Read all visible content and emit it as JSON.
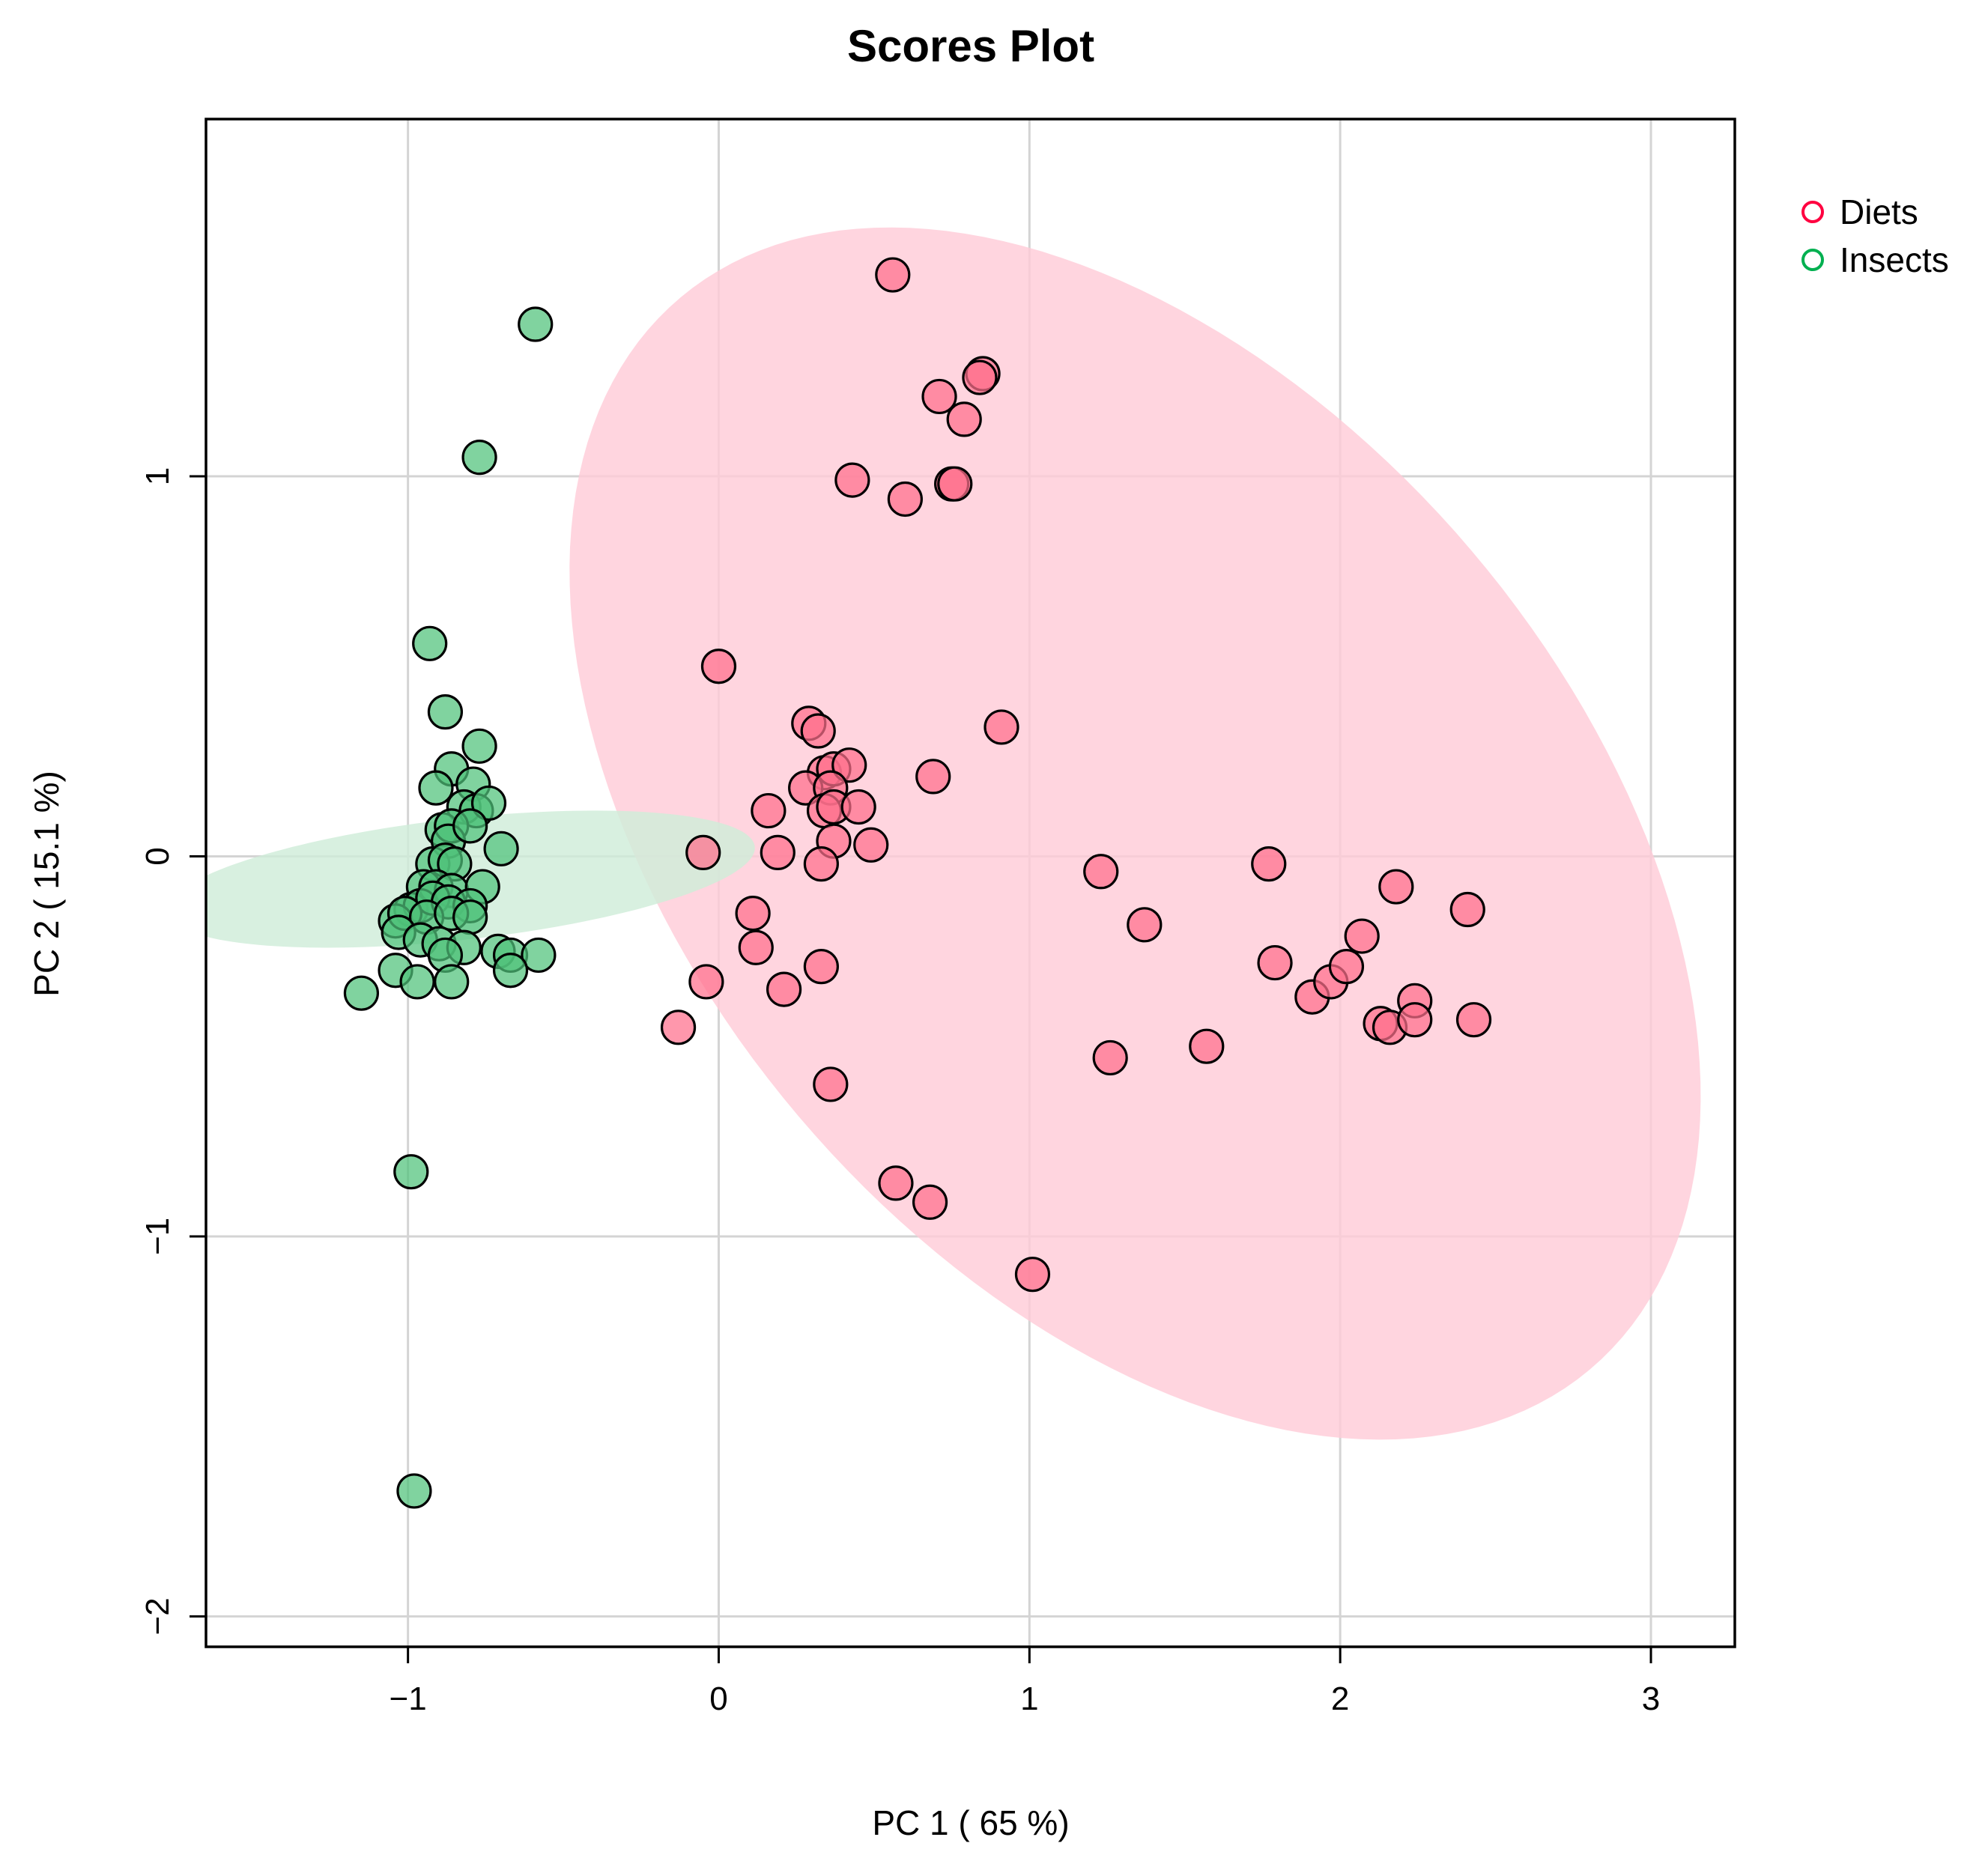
{
  "chart_data": {
    "type": "scatter",
    "title": "Scores Plot",
    "xlabel": "PC 1 ( 65 %)",
    "ylabel": "PC 2 ( 15.1 %)",
    "xlim": [
      -1.65,
      3.27
    ],
    "ylim": [
      -2.08,
      1.94
    ],
    "xticks": [
      -1,
      0,
      1,
      2,
      3
    ],
    "yticks": [
      -2,
      -1,
      0,
      1
    ],
    "xtick_labels": [
      "−1",
      "0",
      "1",
      "2",
      "3"
    ],
    "ytick_labels": [
      "−2",
      "−1",
      "0",
      "1"
    ],
    "grid": true,
    "legend_position": "outside-top-right",
    "series": [
      {
        "name": "Diets",
        "legend_color": "#ff0040",
        "fill_color": "#ff6f8c",
        "ellipse_color": "#ffccd8",
        "ellipse": {
          "cx": 1.34,
          "cy": 0.06,
          "rx": 2.06,
          "ry": 1.27,
          "angle_deg": -36.5
        },
        "points": [
          [
            0.56,
            1.53
          ],
          [
            0.85,
            1.27
          ],
          [
            0.84,
            1.26
          ],
          [
            0.71,
            1.21
          ],
          [
            0.79,
            1.15
          ],
          [
            0.43,
            0.99
          ],
          [
            0.6,
            0.94
          ],
          [
            0.75,
            0.98
          ],
          [
            0.76,
            0.98
          ],
          [
            0.0,
            0.5
          ],
          [
            0.91,
            0.34
          ],
          [
            0.29,
            0.35
          ],
          [
            0.32,
            0.33
          ],
          [
            0.34,
            0.22
          ],
          [
            0.37,
            0.23
          ],
          [
            0.42,
            0.24
          ],
          [
            0.28,
            0.18
          ],
          [
            0.36,
            0.18
          ],
          [
            0.16,
            0.12
          ],
          [
            0.34,
            0.12
          ],
          [
            0.37,
            0.13
          ],
          [
            0.45,
            0.13
          ],
          [
            0.69,
            0.21
          ],
          [
            -0.05,
            0.01
          ],
          [
            0.19,
            0.01
          ],
          [
            0.37,
            0.04
          ],
          [
            0.49,
            0.03
          ],
          [
            0.33,
            -0.02
          ],
          [
            0.11,
            -0.15
          ],
          [
            0.12,
            -0.24
          ],
          [
            0.33,
            -0.29
          ],
          [
            -0.04,
            -0.33
          ],
          [
            0.21,
            -0.35
          ],
          [
            -0.13,
            -0.45
          ],
          [
            0.36,
            -0.6
          ],
          [
            0.57,
            -0.86
          ],
          [
            0.68,
            -0.91
          ],
          [
            1.01,
            -1.1
          ],
          [
            1.23,
            -0.04
          ],
          [
            1.37,
            -0.18
          ],
          [
            1.26,
            -0.53
          ],
          [
            1.57,
            -0.5
          ],
          [
            1.77,
            -0.02
          ],
          [
            1.79,
            -0.28
          ],
          [
            1.91,
            -0.37
          ],
          [
            1.97,
            -0.33
          ],
          [
            2.02,
            -0.29
          ],
          [
            2.07,
            -0.21
          ],
          [
            2.18,
            -0.08
          ],
          [
            2.41,
            -0.14
          ],
          [
            2.13,
            -0.44
          ],
          [
            2.16,
            -0.45
          ],
          [
            2.24,
            -0.38
          ],
          [
            2.24,
            -0.43
          ],
          [
            2.43,
            -0.43
          ]
        ]
      },
      {
        "name": "Insects",
        "legend_color": "#00b050",
        "fill_color": "#4fc27a",
        "ellipse_color": "#cfedd9",
        "ellipse": {
          "cx": -0.83,
          "cy": -0.06,
          "rx": 0.16,
          "ry": 0.95,
          "angle_deg": 95.1
        },
        "points": [
          [
            -0.59,
            1.4
          ],
          [
            -0.77,
            1.05
          ],
          [
            -0.93,
            0.56
          ],
          [
            -0.88,
            0.38
          ],
          [
            -0.77,
            0.29
          ],
          [
            -0.86,
            0.23
          ],
          [
            -0.91,
            0.18
          ],
          [
            -0.79,
            0.19
          ],
          [
            -0.82,
            0.13
          ],
          [
            -0.78,
            0.12
          ],
          [
            -0.74,
            0.14
          ],
          [
            -0.89,
            0.07
          ],
          [
            -0.86,
            0.08
          ],
          [
            -0.87,
            0.04
          ],
          [
            -0.8,
            0.08
          ],
          [
            -0.7,
            0.02
          ],
          [
            -0.92,
            -0.02
          ],
          [
            -0.88,
            -0.01
          ],
          [
            -0.85,
            -0.02
          ],
          [
            -0.95,
            -0.08
          ],
          [
            -0.91,
            -0.08
          ],
          [
            -0.86,
            -0.09
          ],
          [
            -0.76,
            -0.08
          ],
          [
            -0.99,
            -0.14
          ],
          [
            -0.96,
            -0.13
          ],
          [
            -0.92,
            -0.11
          ],
          [
            -0.87,
            -0.12
          ],
          [
            -0.8,
            -0.13
          ],
          [
            -1.04,
            -0.17
          ],
          [
            -1.01,
            -0.15
          ],
          [
            -0.94,
            -0.16
          ],
          [
            -0.86,
            -0.15
          ],
          [
            -0.8,
            -0.16
          ],
          [
            -1.03,
            -0.2
          ],
          [
            -0.96,
            -0.22
          ],
          [
            -0.9,
            -0.23
          ],
          [
            -0.82,
            -0.24
          ],
          [
            -0.88,
            -0.26
          ],
          [
            -0.71,
            -0.25
          ],
          [
            -0.67,
            -0.26
          ],
          [
            -0.58,
            -0.26
          ],
          [
            -1.04,
            -0.3
          ],
          [
            -0.97,
            -0.33
          ],
          [
            -0.86,
            -0.33
          ],
          [
            -0.67,
            -0.3
          ],
          [
            -1.15,
            -0.36
          ],
          [
            -0.99,
            -0.83
          ],
          [
            -0.98,
            -1.67
          ]
        ]
      }
    ]
  }
}
